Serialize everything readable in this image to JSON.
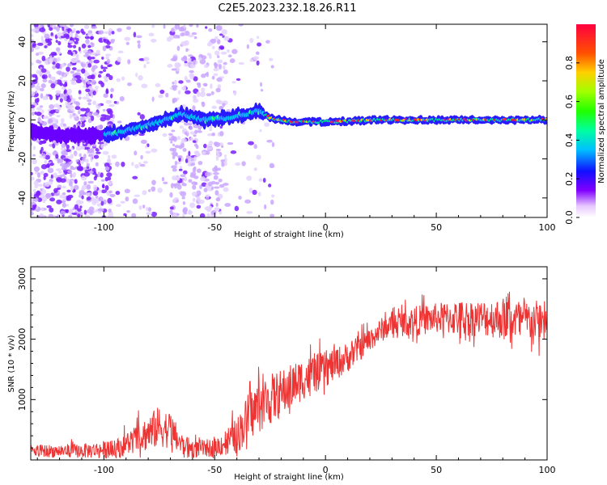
{
  "title": "C2E5.2023.232.18.26.R11",
  "chart_data": [
    {
      "type": "heatmap",
      "xlabel": "Height of straight line (km)",
      "ylabel": "Frequency (Hz)",
      "xlim": [
        -133,
        100
      ],
      "ylim": [
        -50,
        49
      ],
      "x_ticks": [
        -100,
        -50,
        0,
        50,
        100
      ],
      "y_ticks": [
        -40,
        -20,
        0,
        20,
        40
      ],
      "colorbar": {
        "label": "Normalized spectral amplitude",
        "range": [
          0,
          1
        ],
        "ticks": [
          0.0,
          0.2,
          0.4,
          0.6,
          0.8
        ],
        "tick_labels": [
          "0.0",
          "0.2",
          "0.4",
          "0.6",
          "0.8"
        ],
        "colormap": "rainbow"
      },
      "ridge": {
        "x": [
          -133,
          -120,
          -105,
          -95,
          -85,
          -75,
          -65,
          -55,
          -45,
          -35,
          -30,
          -25,
          -15,
          0,
          25,
          50,
          75,
          100
        ],
        "frequency": [
          -6,
          -8,
          -8,
          -7,
          -4,
          -1,
          3,
          0,
          1,
          3,
          5,
          1,
          -1,
          -1,
          0,
          0,
          0,
          0
        ]
      },
      "grid": false,
      "legend": "none"
    },
    {
      "type": "line",
      "xlabel": "Height of straight line (km)",
      "ylabel": "SNR (10 * v/v)",
      "xlim": [
        -133,
        100
      ],
      "ylim": [
        0,
        3200
      ],
      "x_ticks": [
        -100,
        -50,
        0,
        50,
        100
      ],
      "y_ticks": [
        1000,
        2000,
        3000
      ],
      "series": [
        {
          "color": "#ee3333",
          "trend_x": [
            -133,
            -110,
            -95,
            -85,
            -75,
            -70,
            -65,
            -60,
            -50,
            -40,
            -35,
            -30,
            -20,
            -10,
            0,
            10,
            20,
            25,
            30,
            40,
            50,
            60,
            70,
            80,
            90,
            100
          ],
          "trend_y": [
            150,
            150,
            180,
            350,
            550,
            500,
            250,
            180,
            200,
            400,
            700,
            900,
            1100,
            1350,
            1500,
            1700,
            2000,
            2150,
            2250,
            2300,
            2350,
            2350,
            2350,
            2350,
            2300,
            2300
          ],
          "noise_y": [
            100,
            120,
            150,
            250,
            350,
            300,
            200,
            150,
            150,
            300,
            400,
            450,
            400,
            350,
            300,
            250,
            200,
            200,
            200,
            250,
            250,
            300,
            300,
            350,
            350,
            350
          ]
        }
      ],
      "grid": false,
      "legend": "none"
    }
  ]
}
